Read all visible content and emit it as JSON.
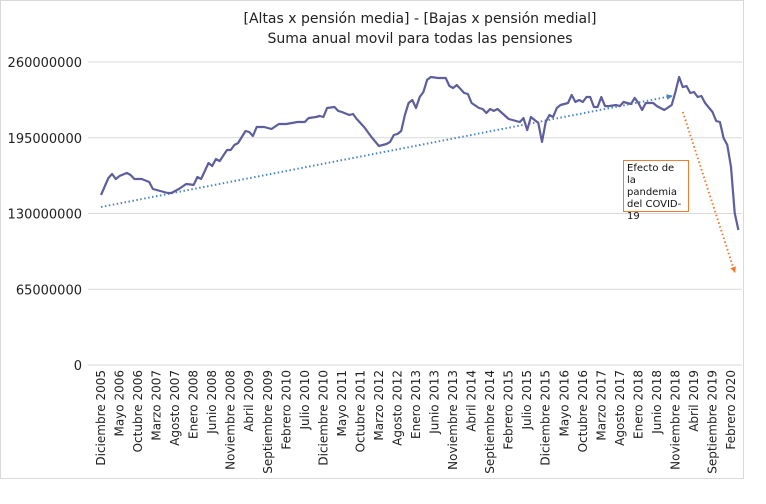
{
  "chart_data": {
    "type": "line",
    "title": [
      "[Altas x pensión media] - [Bajas x pensión medial]",
      "Suma anual movil para todas las pensiones"
    ],
    "xlabel": "",
    "ylabel": "",
    "ylim": [
      0,
      260000000
    ],
    "yticks": [
      "0",
      "65000000",
      "130000000",
      "195000000",
      "260000000"
    ],
    "ytick_values": [
      0,
      65000000,
      130000000,
      195000000,
      260000000
    ],
    "xlim": [
      "2005-12",
      "2020-04"
    ],
    "xtick_labels": [
      "Diciembre 2005",
      "Mayo 2006",
      "Octubre 2006",
      "Marzo 2007",
      "Agosto 2007",
      "Enero 2008",
      "Junio 2008",
      "Noviembre 2008",
      "Abril 2009",
      "Septiembre 2009",
      "Febrero 2010",
      "Julio 2010",
      "Diciembre 2010",
      "Mayo 2011",
      "Octubre 2011",
      "Marzo 2012",
      "Agosto 2012",
      "Enero 2013",
      "Junio 2013",
      "Noviembre 2013",
      "Abril 2014",
      "Septiembre 2014",
      "Febrero 2015",
      "Julio 2015",
      "Diciembre 2015",
      "Mayo 2016",
      "Octubre 2016",
      "Marzo 2017",
      "Agosto 2017",
      "Enero 2018",
      "Junio 2018",
      "Noviembre 2018",
      "Abril 2019",
      "Septiembre 2019",
      "Febrero 2020"
    ],
    "grid": true,
    "legend": "none",
    "series": [
      {
        "color": "#5E5E9C",
        "points": [
          [
            "2005-12",
            145900000
          ],
          [
            "2006-02",
            160500000
          ],
          [
            "2006-03",
            163900000
          ],
          [
            "2006-04",
            159600000
          ],
          [
            "2006-05",
            162200000
          ],
          [
            "2006-07",
            164800000
          ],
          [
            "2006-08",
            163000000
          ],
          [
            "2006-09",
            159600000
          ],
          [
            "2006-11",
            159600000
          ],
          [
            "2007-01",
            157000000
          ],
          [
            "2007-02",
            151000000
          ],
          [
            "2007-04",
            149300000
          ],
          [
            "2007-06",
            147600000
          ],
          [
            "2007-07",
            147600000
          ],
          [
            "2007-09",
            151000000
          ],
          [
            "2007-11",
            155300000
          ],
          [
            "2008-01",
            154500000
          ],
          [
            "2008-02",
            161300000
          ],
          [
            "2008-03",
            159600000
          ],
          [
            "2008-05",
            173300000
          ],
          [
            "2008-06",
            170800000
          ],
          [
            "2008-07",
            176800000
          ],
          [
            "2008-08",
            175000000
          ],
          [
            "2008-10",
            184500000
          ],
          [
            "2008-11",
            184500000
          ],
          [
            "2008-12",
            188800000
          ],
          [
            "2009-01",
            190500000
          ],
          [
            "2009-03",
            200800000
          ],
          [
            "2009-04",
            199900000
          ],
          [
            "2009-05",
            196500000
          ],
          [
            "2009-06",
            204200000
          ],
          [
            "2009-08",
            204200000
          ],
          [
            "2009-10",
            202500000
          ],
          [
            "2009-12",
            206800000
          ],
          [
            "2010-02",
            206800000
          ],
          [
            "2010-05",
            208500000
          ],
          [
            "2010-07",
            208500000
          ],
          [
            "2010-08",
            211900000
          ],
          [
            "2010-10",
            212800000
          ],
          [
            "2010-11",
            213700000
          ],
          [
            "2010-12",
            212800000
          ],
          [
            "2011-01",
            220500000
          ],
          [
            "2011-03",
            221400000
          ],
          [
            "2011-04",
            218000000
          ],
          [
            "2011-05",
            217100000
          ],
          [
            "2011-07",
            214500000
          ],
          [
            "2011-08",
            215400000
          ],
          [
            "2011-09",
            211100000
          ],
          [
            "2011-11",
            204200000
          ],
          [
            "2012-01",
            195600000
          ],
          [
            "2012-03",
            187900000
          ],
          [
            "2012-05",
            189600000
          ],
          [
            "2012-06",
            191400000
          ],
          [
            "2012-07",
            197400000
          ],
          [
            "2012-08",
            198200000
          ],
          [
            "2012-09",
            200800000
          ],
          [
            "2012-10",
            214500000
          ],
          [
            "2012-11",
            224800000
          ],
          [
            "2012-12",
            227400000
          ],
          [
            "2013-01",
            220500000
          ],
          [
            "2013-02",
            230000000
          ],
          [
            "2013-03",
            234300000
          ],
          [
            "2013-04",
            244600000
          ],
          [
            "2013-05",
            247100000
          ],
          [
            "2013-07",
            246300000
          ],
          [
            "2013-09",
            246300000
          ],
          [
            "2013-10",
            239400000
          ],
          [
            "2013-11",
            237700000
          ],
          [
            "2013-12",
            240300000
          ],
          [
            "2014-02",
            233400000
          ],
          [
            "2014-03",
            232500000
          ],
          [
            "2014-04",
            224800000
          ],
          [
            "2014-06",
            220500000
          ],
          [
            "2014-07",
            219700000
          ],
          [
            "2014-08",
            216200000
          ],
          [
            "2014-09",
            219700000
          ],
          [
            "2014-10",
            218000000
          ],
          [
            "2014-11",
            219700000
          ],
          [
            "2015-02",
            211100000
          ],
          [
            "2015-05",
            208500000
          ],
          [
            "2015-06",
            211900000
          ],
          [
            "2015-07",
            201600000
          ],
          [
            "2015-08",
            212800000
          ],
          [
            "2015-09",
            210200000
          ],
          [
            "2015-10",
            207700000
          ],
          [
            "2015-11",
            191400000
          ],
          [
            "2015-12",
            208500000
          ],
          [
            "2016-01",
            214500000
          ],
          [
            "2016-02",
            212800000
          ],
          [
            "2016-03",
            220500000
          ],
          [
            "2016-04",
            223100000
          ],
          [
            "2016-06",
            224800000
          ],
          [
            "2016-07",
            231700000
          ],
          [
            "2016-08",
            225700000
          ],
          [
            "2016-09",
            227400000
          ],
          [
            "2016-10",
            225700000
          ],
          [
            "2016-11",
            230000000
          ],
          [
            "2016-12",
            230000000
          ],
          [
            "2017-01",
            221400000
          ],
          [
            "2017-02",
            221400000
          ],
          [
            "2017-03",
            230000000
          ],
          [
            "2017-04",
            222200000
          ],
          [
            "2017-05",
            222200000
          ],
          [
            "2017-07",
            223100000
          ],
          [
            "2017-08",
            222200000
          ],
          [
            "2017-09",
            225700000
          ],
          [
            "2017-11",
            224000000
          ],
          [
            "2017-12",
            229200000
          ],
          [
            "2018-01",
            224800000
          ],
          [
            "2018-02",
            218800000
          ],
          [
            "2018-03",
            224800000
          ],
          [
            "2018-05",
            224800000
          ],
          [
            "2018-06",
            222200000
          ],
          [
            "2018-08",
            218800000
          ],
          [
            "2018-10",
            223100000
          ],
          [
            "2018-11",
            234300000
          ],
          [
            "2018-12",
            247100000
          ],
          [
            "2019-01",
            238500000
          ],
          [
            "2019-02",
            239400000
          ],
          [
            "2019-03",
            233400000
          ],
          [
            "2019-04",
            234300000
          ],
          [
            "2019-05",
            230000000
          ],
          [
            "2019-06",
            230800000
          ],
          [
            "2019-07",
            224800000
          ],
          [
            "2019-09",
            217100000
          ],
          [
            "2019-10",
            209400000
          ],
          [
            "2019-11",
            208500000
          ],
          [
            "2019-12",
            194800000
          ],
          [
            "2020-01",
            188800000
          ],
          [
            "2020-02",
            169900000
          ],
          [
            "2020-03",
            130400000
          ],
          [
            "2020-04",
            115800000
          ]
        ]
      }
    ],
    "trendlines": [
      {
        "style": "dotted-arrow",
        "color": "#4A86C5",
        "from": [
          "2005-12",
          135600000
        ],
        "to": [
          "2018-10",
          230800000
        ]
      },
      {
        "style": "dotted-arrow",
        "color": "#ED7D31",
        "from": [
          "2019-01",
          217100000
        ],
        "to": [
          "2020-03",
          79800000
        ]
      }
    ],
    "annotation": {
      "text": "Efecto de la pandemia del COVID-19",
      "color": "#ED7D31"
    }
  }
}
